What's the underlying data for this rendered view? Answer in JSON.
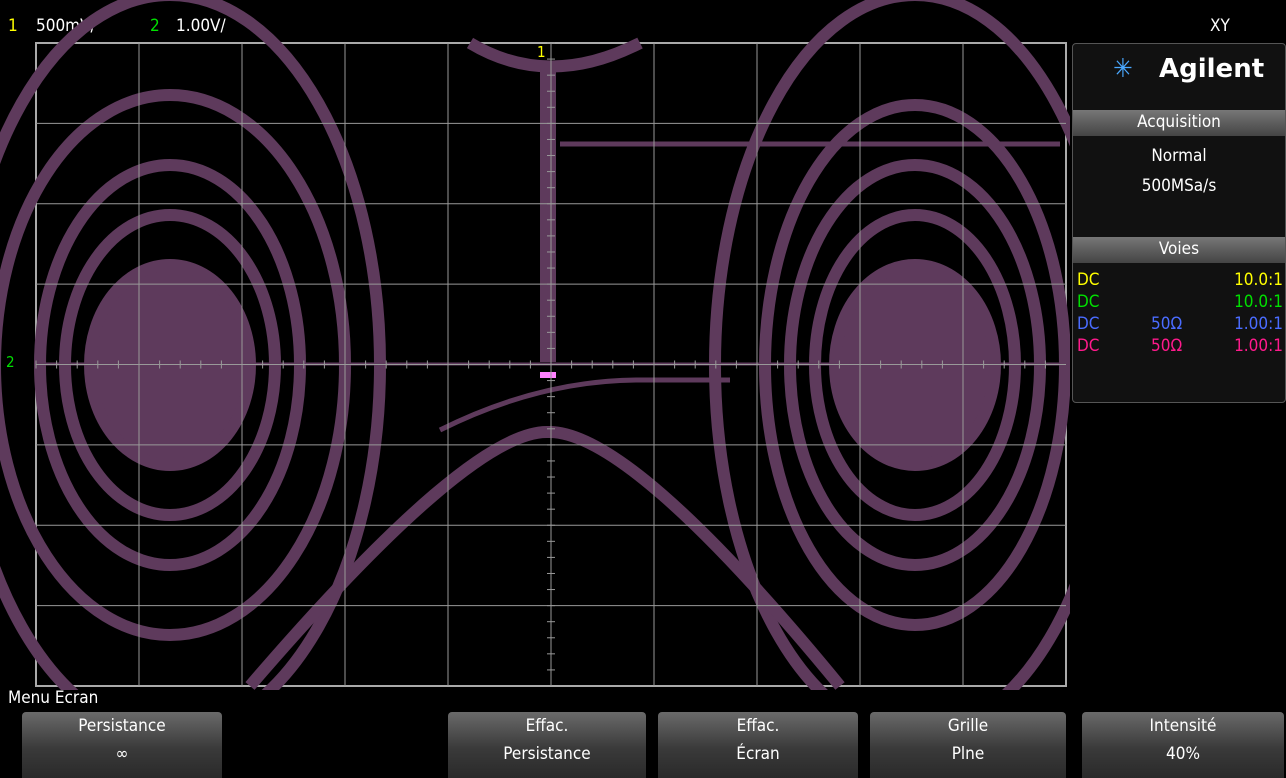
{
  "header": {
    "ch1": "1",
    "ch1_scale": "500mV/",
    "ch2": "2",
    "ch2_scale": "1.00V/",
    "mode": "XY"
  },
  "panel": {
    "brand": "Agilent",
    "acquisition": {
      "title": "Acquisition",
      "mode": "Normal",
      "rate": "500MSa/s"
    },
    "channels": {
      "title": "Voies",
      "rows": [
        {
          "coupling": "DC",
          "probe": "10.0:1",
          "color": "#ffff00"
        },
        {
          "coupling": "DC",
          "probe": "10.0:1",
          "color": "#00e000"
        },
        {
          "coupling": "DC",
          "impedance": "50Ω",
          "probe": "1.00:1",
          "color": "#4a6cff"
        },
        {
          "coupling": "DC",
          "impedance": "50Ω",
          "probe": "1.00:1",
          "color": "#ff1a8c"
        }
      ]
    }
  },
  "menu": {
    "title": "Menu Ecran",
    "softkeys": [
      {
        "label": "Persistance",
        "value": "∞"
      },
      {
        "label": "Effac.",
        "value": "Persistance"
      },
      {
        "label": "Effac.",
        "value": "Écran"
      },
      {
        "label": "Grille",
        "value": "Plne"
      },
      {
        "label": "Intensité",
        "value": "40%"
      }
    ]
  }
}
